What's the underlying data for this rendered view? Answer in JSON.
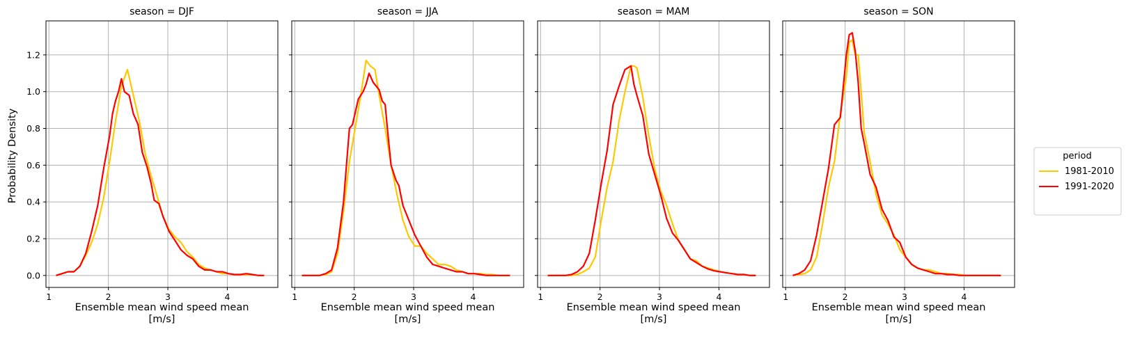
{
  "chart_data": {
    "type": "line",
    "ylabel": "Probability Density",
    "xlabel_line1": "Ensemble mean wind speed mean",
    "xlabel_line2": "[m/s]",
    "xlim": [
      0.95,
      4.85
    ],
    "ylim": [
      -0.065,
      1.385
    ],
    "xticks": [
      1,
      2,
      3,
      4
    ],
    "yticks": [
      0.0,
      0.2,
      0.4,
      0.6,
      0.8,
      1.0,
      1.2
    ],
    "ytick_labels": [
      "0.0",
      "0.2",
      "0.4",
      "0.6",
      "0.8",
      "1.0",
      "1.2"
    ],
    "grid": true,
    "legend": {
      "title": "period",
      "placement": "right",
      "entries": [
        {
          "name": "1981-2010",
          "color": "#ffc800"
        },
        {
          "name": "1991-2020",
          "color": "#ff0000"
        }
      ]
    },
    "panels": [
      {
        "title": "season = DJF",
        "series": [
          {
            "name": "1981-2010",
            "color": "#ffc800",
            "x": [
              1.12,
              1.22,
              1.32,
              1.42,
              1.52,
              1.62,
              1.72,
              1.82,
              1.92,
              2.02,
              2.12,
              2.22,
              2.32,
              2.42,
              2.52,
              2.62,
              2.72,
              2.82,
              2.92,
              3.02,
              3.12,
              3.22,
              3.32,
              3.42,
              3.52,
              3.62,
              3.72,
              3.82,
              3.92,
              4.02,
              4.12,
              4.22,
              4.32,
              4.42,
              4.52,
              4.62
            ],
            "y": [
              0.0,
              0.01,
              0.02,
              0.02,
              0.05,
              0.11,
              0.18,
              0.28,
              0.42,
              0.62,
              0.84,
              1.03,
              1.12,
              0.98,
              0.84,
              0.66,
              0.54,
              0.43,
              0.32,
              0.25,
              0.21,
              0.18,
              0.13,
              0.1,
              0.06,
              0.04,
              0.03,
              0.02,
              0.01,
              0.01,
              0.005,
              0.005,
              0.005,
              0.005,
              0.0,
              0.0
            ]
          },
          {
            "name": "1991-2020",
            "color": "#ff0000",
            "x": [
              1.12,
              1.22,
              1.32,
              1.42,
              1.52,
              1.62,
              1.72,
              1.82,
              1.92,
              2.02,
              2.07,
              2.12,
              2.17,
              2.22,
              2.27,
              2.35,
              2.42,
              2.5,
              2.57,
              2.65,
              2.72,
              2.77,
              2.85,
              2.92,
              3.02,
              3.12,
              3.22,
              3.32,
              3.42,
              3.52,
              3.62,
              3.72,
              3.82,
              3.92,
              4.02,
              4.12,
              4.22,
              4.32,
              4.42,
              4.52,
              4.62
            ],
            "y": [
              0.0,
              0.01,
              0.02,
              0.02,
              0.05,
              0.12,
              0.24,
              0.38,
              0.58,
              0.76,
              0.88,
              0.95,
              1.0,
              1.07,
              1.0,
              0.98,
              0.88,
              0.82,
              0.67,
              0.59,
              0.5,
              0.41,
              0.39,
              0.32,
              0.24,
              0.19,
              0.14,
              0.11,
              0.09,
              0.05,
              0.03,
              0.03,
              0.02,
              0.02,
              0.01,
              0.005,
              0.005,
              0.01,
              0.005,
              0.0,
              0.0
            ]
          }
        ]
      },
      {
        "title": "season = JJA",
        "series": [
          {
            "name": "1981-2010",
            "color": "#ffc800",
            "x": [
              1.12,
              1.22,
              1.32,
              1.42,
              1.52,
              1.62,
              1.72,
              1.82,
              1.92,
              2.02,
              2.12,
              2.2,
              2.27,
              2.35,
              2.42,
              2.52,
              2.62,
              2.72,
              2.82,
              2.92,
              3.02,
              3.12,
              3.22,
              3.32,
              3.42,
              3.52,
              3.62,
              3.72,
              3.82,
              3.92,
              4.02,
              4.12,
              4.22,
              4.32,
              4.42,
              4.52,
              4.62
            ],
            "y": [
              0.0,
              0.0,
              0.0,
              0.0,
              0.005,
              0.02,
              0.12,
              0.35,
              0.62,
              0.81,
              1.0,
              1.17,
              1.14,
              1.12,
              0.98,
              0.8,
              0.6,
              0.44,
              0.3,
              0.21,
              0.16,
              0.16,
              0.12,
              0.09,
              0.06,
              0.06,
              0.05,
              0.03,
              0.02,
              0.01,
              0.01,
              0.01,
              0.005,
              0.005,
              0.0,
              0.0,
              0.0
            ]
          },
          {
            "name": "1991-2020",
            "color": "#ff0000",
            "x": [
              1.12,
              1.22,
              1.32,
              1.42,
              1.52,
              1.62,
              1.72,
              1.82,
              1.92,
              1.97,
              2.07,
              2.15,
              2.2,
              2.25,
              2.32,
              2.42,
              2.47,
              2.52,
              2.57,
              2.62,
              2.7,
              2.75,
              2.82,
              2.92,
              3.02,
              3.12,
              3.22,
              3.32,
              3.42,
              3.52,
              3.62,
              3.72,
              3.82,
              3.92,
              4.02,
              4.12,
              4.22,
              4.32,
              4.42,
              4.52,
              4.62
            ],
            "y": [
              0.0,
              0.0,
              0.0,
              0.0,
              0.01,
              0.03,
              0.15,
              0.4,
              0.8,
              0.82,
              0.96,
              1.0,
              1.04,
              1.1,
              1.05,
              1.01,
              0.95,
              0.93,
              0.76,
              0.6,
              0.52,
              0.49,
              0.38,
              0.3,
              0.22,
              0.16,
              0.1,
              0.06,
              0.05,
              0.04,
              0.03,
              0.02,
              0.02,
              0.01,
              0.01,
              0.005,
              0.0,
              0.0,
              0.0,
              0.0,
              0.0
            ]
          }
        ]
      },
      {
        "title": "season = MAM",
        "series": [
          {
            "name": "1981-2010",
            "color": "#ffc800",
            "x": [
              1.12,
              1.22,
              1.32,
              1.42,
              1.52,
              1.62,
              1.72,
              1.82,
              1.92,
              2.02,
              2.12,
              2.22,
              2.32,
              2.42,
              2.52,
              2.57,
              2.62,
              2.72,
              2.82,
              2.92,
              3.02,
              3.12,
              3.22,
              3.32,
              3.42,
              3.52,
              3.62,
              3.72,
              3.82,
              3.92,
              4.02,
              4.12,
              4.22,
              4.32,
              4.42,
              4.52,
              4.62
            ],
            "y": [
              0.0,
              0.0,
              0.0,
              0.0,
              0.0,
              0.005,
              0.02,
              0.04,
              0.1,
              0.3,
              0.48,
              0.62,
              0.84,
              1.0,
              1.14,
              1.14,
              1.13,
              0.97,
              0.76,
              0.58,
              0.46,
              0.38,
              0.28,
              0.19,
              0.14,
              0.09,
              0.08,
              0.05,
              0.04,
              0.03,
              0.02,
              0.015,
              0.01,
              0.005,
              0.005,
              0.0,
              0.0
            ]
          },
          {
            "name": "1991-2020",
            "color": "#ff0000",
            "x": [
              1.12,
              1.22,
              1.32,
              1.42,
              1.52,
              1.62,
              1.72,
              1.82,
              1.92,
              2.02,
              2.12,
              2.22,
              2.32,
              2.42,
              2.52,
              2.57,
              2.62,
              2.72,
              2.82,
              2.92,
              3.02,
              3.12,
              3.22,
              3.32,
              3.42,
              3.52,
              3.62,
              3.72,
              3.82,
              3.92,
              4.02,
              4.12,
              4.22,
              4.32,
              4.42,
              4.52,
              4.62
            ],
            "y": [
              0.0,
              0.0,
              0.0,
              0.0,
              0.005,
              0.02,
              0.05,
              0.12,
              0.3,
              0.5,
              0.68,
              0.93,
              1.03,
              1.12,
              1.14,
              1.04,
              0.98,
              0.87,
              0.66,
              0.55,
              0.44,
              0.31,
              0.23,
              0.19,
              0.14,
              0.09,
              0.07,
              0.05,
              0.035,
              0.025,
              0.02,
              0.015,
              0.01,
              0.005,
              0.005,
              0.0,
              0.0
            ]
          }
        ]
      },
      {
        "title": "season = SON",
        "series": [
          {
            "name": "1981-2010",
            "color": "#ffc800",
            "x": [
              1.12,
              1.22,
              1.32,
              1.42,
              1.52,
              1.62,
              1.72,
              1.82,
              1.92,
              2.02,
              2.07,
              2.12,
              2.17,
              2.22,
              2.27,
              2.32,
              2.42,
              2.52,
              2.62,
              2.72,
              2.82,
              2.92,
              3.02,
              3.12,
              3.22,
              3.32,
              3.42,
              3.52,
              3.62,
              3.72,
              3.82,
              3.92,
              4.02,
              4.12,
              4.22,
              4.32,
              4.42,
              4.52,
              4.62
            ],
            "y": [
              0.0,
              0.005,
              0.01,
              0.03,
              0.1,
              0.28,
              0.48,
              0.62,
              0.88,
              1.08,
              1.27,
              1.28,
              1.2,
              1.2,
              1.0,
              0.78,
              0.62,
              0.44,
              0.33,
              0.28,
              0.22,
              0.14,
              0.1,
              0.06,
              0.04,
              0.03,
              0.03,
              0.02,
              0.01,
              0.01,
              0.005,
              0.005,
              0.0,
              0.0,
              0.0,
              0.0,
              0.0,
              0.0,
              0.0
            ]
          },
          {
            "name": "1991-2020",
            "color": "#ff0000",
            "x": [
              1.12,
              1.22,
              1.32,
              1.42,
              1.52,
              1.62,
              1.72,
              1.82,
              1.92,
              2.02,
              2.07,
              2.12,
              2.17,
              2.22,
              2.27,
              2.32,
              2.42,
              2.52,
              2.62,
              2.72,
              2.82,
              2.92,
              3.02,
              3.12,
              3.22,
              3.32,
              3.42,
              3.52,
              3.62,
              3.72,
              3.82,
              3.92,
              4.02,
              4.12,
              4.22,
              4.32,
              4.42,
              4.52,
              4.62
            ],
            "y": [
              0.0,
              0.01,
              0.03,
              0.08,
              0.22,
              0.4,
              0.58,
              0.82,
              0.86,
              1.2,
              1.31,
              1.32,
              1.22,
              1.05,
              0.8,
              0.72,
              0.55,
              0.48,
              0.36,
              0.3,
              0.21,
              0.18,
              0.1,
              0.06,
              0.04,
              0.03,
              0.02,
              0.01,
              0.01,
              0.005,
              0.005,
              0.0,
              0.0,
              0.0,
              0.0,
              0.0,
              0.0,
              0.0,
              0.0
            ]
          }
        ]
      }
    ]
  }
}
